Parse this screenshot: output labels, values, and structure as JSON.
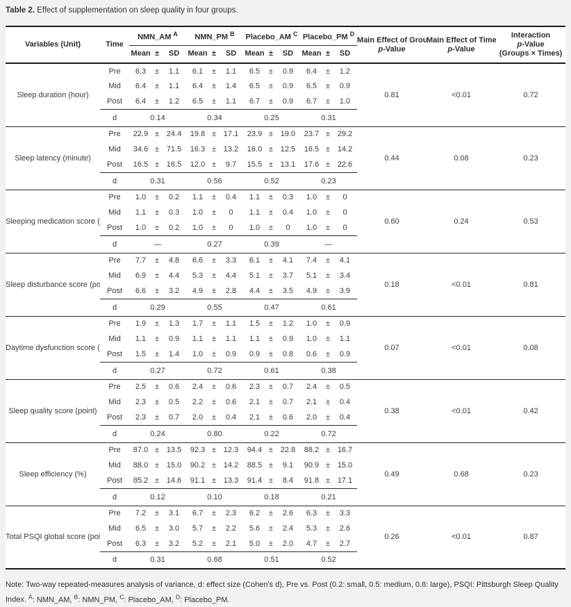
{
  "title": {
    "label": "Table 2.",
    "text": " Effect of supplementation on sleep quality in four groups."
  },
  "table": {
    "col_variables": "Variables (Unit)",
    "col_time": "Time",
    "plus_minus": "±",
    "stat_headers": [
      "Mean",
      "±",
      "SD"
    ],
    "groups": [
      {
        "name": "NMN_AM",
        "sup": "A"
      },
      {
        "name": "NMN_PM",
        "sup": "B"
      },
      {
        "name": "Placebo_AM",
        "sup": "C"
      },
      {
        "name": "Placebo_PM",
        "sup": "D"
      }
    ],
    "effect_headers": [
      {
        "lines": [
          "Main Effect of Group",
          "p-Value"
        ]
      },
      {
        "lines": [
          "Main Effect of Time",
          "p-Value"
        ]
      },
      {
        "lines": [
          "Interaction",
          "p-Value",
          "(Groups × Times)"
        ]
      }
    ],
    "d_label": "d",
    "blocks": [
      {
        "variable": "Sleep duration (hour)",
        "rows": [
          {
            "time": "Pre",
            "cells": [
              [
                "6.3",
                "1.1"
              ],
              [
                "6.1",
                "1.1"
              ],
              [
                "6.5",
                "0.9"
              ],
              [
                "6.4",
                "1.2"
              ]
            ]
          },
          {
            "time": "Mid",
            "cells": [
              [
                "6.4",
                "1.1"
              ],
              [
                "6.4",
                "1.4"
              ],
              [
                "6.5",
                "0.9"
              ],
              [
                "6.5",
                "0.9"
              ]
            ]
          },
          {
            "time": "Post",
            "cells": [
              [
                "6.4",
                "1.2"
              ],
              [
                "6.5",
                "1.1"
              ],
              [
                "6.7",
                "0.9"
              ],
              [
                "6.7",
                "1.0"
              ]
            ]
          }
        ],
        "d": [
          "0.14",
          "0.34",
          "0.25",
          "0.31"
        ],
        "p": [
          "0.81",
          "<0.01",
          "0.72"
        ]
      },
      {
        "variable": "Sleep latency (minute)",
        "rows": [
          {
            "time": "Pre",
            "cells": [
              [
                "22.9",
                "24.4"
              ],
              [
                "19.8",
                "17.1"
              ],
              [
                "23.9",
                "19.0"
              ],
              [
                "23.7",
                "29.2"
              ]
            ]
          },
          {
            "time": "Mid",
            "cells": [
              [
                "34.6",
                "71.5"
              ],
              [
                "16.3",
                "13.2"
              ],
              [
                "16.0",
                "12.5"
              ],
              [
                "16.5",
                "14.2"
              ]
            ]
          },
          {
            "time": "Post",
            "cells": [
              [
                "16.5",
                "16.5"
              ],
              [
                "12.0",
                "9.7"
              ],
              [
                "15.5",
                "13.1"
              ],
              [
                "17.6",
                "22.6"
              ]
            ]
          }
        ],
        "d": [
          "0.31",
          "0.56",
          "0.52",
          "0.23"
        ],
        "p": [
          "0.44",
          "0.08",
          "0.23"
        ]
      },
      {
        "variable": "Sleeping medication score (point)",
        "rows": [
          {
            "time": "Pre",
            "cells": [
              [
                "1.0",
                "0.2"
              ],
              [
                "1.1",
                "0.4"
              ],
              [
                "1.1",
                "0.3"
              ],
              [
                "1.0",
                "0"
              ]
            ]
          },
          {
            "time": "Mid",
            "cells": [
              [
                "1.1",
                "0.3"
              ],
              [
                "1.0",
                "0"
              ],
              [
                "1.1",
                "0.4"
              ],
              [
                "1.0",
                "0"
              ]
            ]
          },
          {
            "time": "Post",
            "cells": [
              [
                "1.0",
                "0.2"
              ],
              [
                "1.0",
                "0"
              ],
              [
                "1.0",
                "0"
              ],
              [
                "1.0",
                "0"
              ]
            ]
          }
        ],
        "d": [
          "—",
          "0.27",
          "0.39",
          "—"
        ],
        "p": [
          "0.60",
          "0.24",
          "0.53"
        ]
      },
      {
        "variable": "Sleep disturbance score (point)",
        "rows": [
          {
            "time": "Pre",
            "cells": [
              [
                "7.7",
                "4.8"
              ],
              [
                "6.6",
                "3.3"
              ],
              [
                "6.1",
                "4.1"
              ],
              [
                "7.4",
                "4.1"
              ]
            ]
          },
          {
            "time": "Mid",
            "cells": [
              [
                "6.9",
                "4.4"
              ],
              [
                "5.3",
                "4.4"
              ],
              [
                "5.1",
                "3.7"
              ],
              [
                "5.1",
                "3.4"
              ]
            ]
          },
          {
            "time": "Post",
            "cells": [
              [
                "6.6",
                "3.2"
              ],
              [
                "4.9",
                "2.8"
              ],
              [
                "4.4",
                "3.5"
              ],
              [
                "4.9",
                "3.9"
              ]
            ]
          }
        ],
        "d": [
          "0.29",
          "0.55",
          "0.47",
          "0.61"
        ],
        "p": [
          "0.18",
          "<0.01",
          "0.81"
        ]
      },
      {
        "variable": "Daytime dysfunction score (point)",
        "rows": [
          {
            "time": "Pre",
            "cells": [
              [
                "1.9",
                "1.3"
              ],
              [
                "1.7",
                "1.1"
              ],
              [
                "1.5",
                "1.2"
              ],
              [
                "1.0",
                "0.9"
              ]
            ]
          },
          {
            "time": "Mid",
            "cells": [
              [
                "1.1",
                "0.9"
              ],
              [
                "1.1",
                "1.1"
              ],
              [
                "1.1",
                "0.9"
              ],
              [
                "1.0",
                "1.1"
              ]
            ]
          },
          {
            "time": "Post",
            "cells": [
              [
                "1.5",
                "1.4"
              ],
              [
                "1.0",
                "0.9"
              ],
              [
                "0.9",
                "0.8"
              ],
              [
                "0.6",
                "0.9"
              ]
            ]
          }
        ],
        "d": [
          "0.27",
          "0.72",
          "0.61",
          "0.38"
        ],
        "p": [
          "0.07",
          "<0.01",
          "0.08"
        ]
      },
      {
        "variable": "Sleep quality score (point)",
        "rows": [
          {
            "time": "Pre",
            "cells": [
              [
                "2.5",
                "0.6"
              ],
              [
                "2.4",
                "0.6"
              ],
              [
                "2.3",
                "0.7"
              ],
              [
                "2.4",
                "0.5"
              ]
            ]
          },
          {
            "time": "Mid",
            "cells": [
              [
                "2.3",
                "0.5"
              ],
              [
                "2.2",
                "0.6"
              ],
              [
                "2.1",
                "0.7"
              ],
              [
                "2.1",
                "0.4"
              ]
            ]
          },
          {
            "time": "Post",
            "cells": [
              [
                "2.3",
                "0.7"
              ],
              [
                "2.0",
                "0.4"
              ],
              [
                "2.1",
                "0.6"
              ],
              [
                "2.0",
                "0.4"
              ]
            ]
          }
        ],
        "d": [
          "0.24",
          "0.80",
          "0.22",
          "0.72"
        ],
        "p": [
          "0.38",
          "<0.01",
          "0.42"
        ]
      },
      {
        "variable": "Sleep efficiency (%)",
        "rows": [
          {
            "time": "Pre",
            "cells": [
              [
                "87.0",
                "13.5"
              ],
              [
                "92.3",
                "12.3"
              ],
              [
                "94.4",
                "22.8"
              ],
              [
                "88.2",
                "16.7"
              ]
            ]
          },
          {
            "time": "Mid",
            "cells": [
              [
                "88.0",
                "15.0"
              ],
              [
                "90.2",
                "14.2"
              ],
              [
                "88.5",
                "9.1"
              ],
              [
                "90.9",
                "15.0"
              ]
            ]
          },
          {
            "time": "Post",
            "cells": [
              [
                "85.2",
                "14.6"
              ],
              [
                "91.1",
                "13.3"
              ],
              [
                "91.4",
                "8.4"
              ],
              [
                "91.8",
                "17.1"
              ]
            ]
          }
        ],
        "d": [
          "0.12",
          "0.10",
          "0.18",
          "0.21"
        ],
        "p": [
          "0.49",
          "0.68",
          "0.23"
        ]
      },
      {
        "variable": "Total PSQI global score (point)",
        "rows": [
          {
            "time": "Pre",
            "cells": [
              [
                "7.2",
                "3.1"
              ],
              [
                "6.7",
                "2.3"
              ],
              [
                "6.2",
                "2.6"
              ],
              [
                "6.3",
                "3.3"
              ]
            ]
          },
          {
            "time": "Mid",
            "cells": [
              [
                "6.5",
                "3.0"
              ],
              [
                "5.7",
                "2.2"
              ],
              [
                "5.6",
                "2.4"
              ],
              [
                "5.3",
                "2.6"
              ]
            ]
          },
          {
            "time": "Post",
            "cells": [
              [
                "6.3",
                "3.2"
              ],
              [
                "5.2",
                "2.1"
              ],
              [
                "5.0",
                "2.0"
              ],
              [
                "4.7",
                "2.7"
              ]
            ]
          }
        ],
        "d": [
          "0.31",
          "0.68",
          "0.51",
          "0.52"
        ],
        "p": [
          "0.26",
          "<0.01",
          "0.87"
        ]
      }
    ]
  },
  "note": {
    "main": "Note: Two-way repeated-measures analysis of variance, d: effect size (Cohen's d), Pre vs. Post (0.2: small, 0.5: medium, 0.8: large), PSQI: Pittsburgh Sleep Quality Index.",
    "abbrevs": [
      {
        "sup": "A",
        "text": ": NMN_AM,"
      },
      {
        "sup": "B",
        "text": ": NMN_PM,"
      },
      {
        "sup": "C",
        "text": ": Placebo_AM,"
      },
      {
        "sup": "D",
        "text": ": Placebo_PM."
      }
    ]
  }
}
